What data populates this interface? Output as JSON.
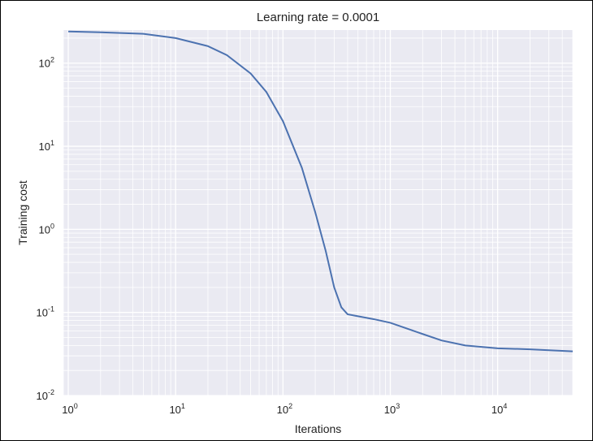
{
  "chart_data": {
    "type": "line",
    "title": "Learning rate = 0.0001",
    "xlabel": "Iterations",
    "ylabel": "Training cost",
    "xscale": "log",
    "yscale": "log",
    "xlim": [
      0.9,
      50000
    ],
    "ylim": [
      0.01,
      250
    ],
    "grid": true,
    "legend": "none",
    "x_ticks": [
      {
        "base": "10",
        "exp": "0",
        "value": 1
      },
      {
        "base": "10",
        "exp": "1",
        "value": 10
      },
      {
        "base": "10",
        "exp": "2",
        "value": 100
      },
      {
        "base": "10",
        "exp": "3",
        "value": 1000
      },
      {
        "base": "10",
        "exp": "4",
        "value": 10000
      }
    ],
    "y_ticks": [
      {
        "base": "10",
        "exp": "2",
        "value": 100
      },
      {
        "base": "10",
        "exp": "1",
        "value": 10
      },
      {
        "base": "10",
        "exp": "0",
        "value": 1
      },
      {
        "base": "10",
        "exp": "-1",
        "value": 0.1
      },
      {
        "base": "10",
        "exp": "-2",
        "value": 0.01
      }
    ],
    "series": [
      {
        "color": "#4c72b0",
        "x": [
          1,
          2,
          5,
          10,
          20,
          30,
          50,
          70,
          100,
          150,
          200,
          250,
          300,
          350,
          400,
          500,
          700,
          1000,
          2000,
          3000,
          5000,
          10000,
          20000,
          50000
        ],
        "y": [
          240,
          235,
          225,
          200,
          160,
          125,
          75,
          45,
          20,
          5.5,
          1.6,
          0.55,
          0.2,
          0.115,
          0.095,
          0.09,
          0.083,
          0.075,
          0.055,
          0.046,
          0.04,
          0.037,
          0.036,
          0.034
        ]
      }
    ]
  },
  "colors": {
    "plot_background": "#eaeaf2",
    "grid": "#ffffff",
    "line": "#4c72b0"
  }
}
